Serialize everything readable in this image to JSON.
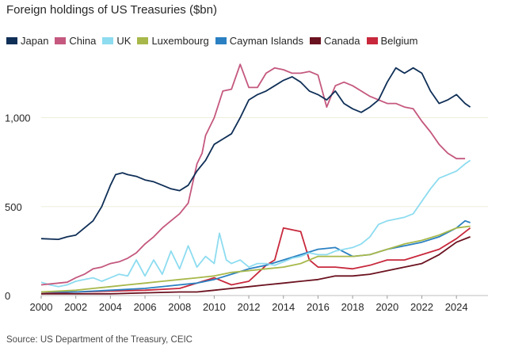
{
  "chart_data": {
    "type": "line",
    "title": "Foreign holdings of US Treasuries ($bn)",
    "source": "Source: US Department of the Treasury, CEIC",
    "xlim": [
      2000,
      2025
    ],
    "ylim": [
      0,
      1350
    ],
    "x_ticks": [
      "2000",
      "2002",
      "2004",
      "2006",
      "2008",
      "2010",
      "2012",
      "2014",
      "2016",
      "2018",
      "2020",
      "2022",
      "2024"
    ],
    "y_ticks": [
      {
        "value": 0,
        "label": "0"
      },
      {
        "value": 500,
        "label": "500"
      },
      {
        "value": 1000,
        "label": "1,000"
      }
    ],
    "grid": "horizontal",
    "legend_position": "top",
    "series": [
      {
        "name": "Japan",
        "color": "#0f2f57",
        "points": [
          [
            2000,
            320
          ],
          [
            2001,
            316
          ],
          [
            2001.5,
            330
          ],
          [
            2002,
            340
          ],
          [
            2002.5,
            380
          ],
          [
            2003,
            420
          ],
          [
            2003.5,
            500
          ],
          [
            2004,
            620
          ],
          [
            2004.3,
            680
          ],
          [
            2004.7,
            690
          ],
          [
            2005,
            680
          ],
          [
            2005.5,
            670
          ],
          [
            2006,
            650
          ],
          [
            2006.5,
            640
          ],
          [
            2007,
            620
          ],
          [
            2007.5,
            600
          ],
          [
            2008,
            590
          ],
          [
            2008.5,
            620
          ],
          [
            2009,
            700
          ],
          [
            2009.5,
            760
          ],
          [
            2010,
            850
          ],
          [
            2010.5,
            880
          ],
          [
            2011,
            910
          ],
          [
            2011.5,
            1000
          ],
          [
            2012,
            1100
          ],
          [
            2012.5,
            1130
          ],
          [
            2013,
            1150
          ],
          [
            2013.5,
            1180
          ],
          [
            2014,
            1210
          ],
          [
            2014.5,
            1230
          ],
          [
            2015,
            1200
          ],
          [
            2015.5,
            1150
          ],
          [
            2016,
            1130
          ],
          [
            2016.5,
            1100
          ],
          [
            2017,
            1150
          ],
          [
            2017.5,
            1080
          ],
          [
            2018,
            1050
          ],
          [
            2018.5,
            1030
          ],
          [
            2019,
            1060
          ],
          [
            2019.5,
            1100
          ],
          [
            2020,
            1200
          ],
          [
            2020.5,
            1280
          ],
          [
            2021,
            1250
          ],
          [
            2021.5,
            1280
          ],
          [
            2022,
            1250
          ],
          [
            2022.5,
            1150
          ],
          [
            2023,
            1080
          ],
          [
            2023.5,
            1100
          ],
          [
            2024,
            1130
          ],
          [
            2024.5,
            1080
          ],
          [
            2024.8,
            1060
          ]
        ]
      },
      {
        "name": "China",
        "color": "#c4587e",
        "points": [
          [
            2000,
            60
          ],
          [
            2000.5,
            65
          ],
          [
            2001,
            70
          ],
          [
            2001.5,
            75
          ],
          [
            2002,
            100
          ],
          [
            2002.5,
            120
          ],
          [
            2003,
            150
          ],
          [
            2003.5,
            160
          ],
          [
            2004,
            180
          ],
          [
            2004.5,
            190
          ],
          [
            2005,
            210
          ],
          [
            2005.5,
            240
          ],
          [
            2006,
            290
          ],
          [
            2006.5,
            330
          ],
          [
            2007,
            380
          ],
          [
            2007.5,
            420
          ],
          [
            2008,
            460
          ],
          [
            2008.5,
            520
          ],
          [
            2009,
            740
          ],
          [
            2009.3,
            800
          ],
          [
            2009.5,
            900
          ],
          [
            2010,
            1000
          ],
          [
            2010.5,
            1150
          ],
          [
            2011,
            1160
          ],
          [
            2011.5,
            1300
          ],
          [
            2012,
            1170
          ],
          [
            2012.5,
            1170
          ],
          [
            2013,
            1250
          ],
          [
            2013.5,
            1280
          ],
          [
            2014,
            1270
          ],
          [
            2014.5,
            1250
          ],
          [
            2015,
            1250
          ],
          [
            2015.5,
            1260
          ],
          [
            2016,
            1240
          ],
          [
            2016.5,
            1060
          ],
          [
            2017,
            1180
          ],
          [
            2017.5,
            1200
          ],
          [
            2018,
            1180
          ],
          [
            2018.5,
            1150
          ],
          [
            2019,
            1120
          ],
          [
            2019.5,
            1100
          ],
          [
            2020,
            1080
          ],
          [
            2020.5,
            1080
          ],
          [
            2021,
            1060
          ],
          [
            2021.5,
            1050
          ],
          [
            2022,
            980
          ],
          [
            2022.5,
            920
          ],
          [
            2023,
            850
          ],
          [
            2023.5,
            800
          ],
          [
            2024,
            770
          ],
          [
            2024.5,
            770
          ]
        ]
      },
      {
        "name": "UK",
        "color": "#8ddcf0",
        "points": [
          [
            2000,
            75
          ],
          [
            2000.5,
            60
          ],
          [
            2001,
            50
          ],
          [
            2001.5,
            60
          ],
          [
            2002,
            80
          ],
          [
            2002.5,
            90
          ],
          [
            2003,
            100
          ],
          [
            2003.5,
            80
          ],
          [
            2004,
            100
          ],
          [
            2004.5,
            120
          ],
          [
            2005,
            110
          ],
          [
            2005.5,
            200
          ],
          [
            2006,
            110
          ],
          [
            2006.5,
            200
          ],
          [
            2007,
            120
          ],
          [
            2007.5,
            250
          ],
          [
            2008,
            150
          ],
          [
            2008.5,
            280
          ],
          [
            2009,
            160
          ],
          [
            2009.5,
            220
          ],
          [
            2010,
            180
          ],
          [
            2010.3,
            350
          ],
          [
            2010.7,
            200
          ],
          [
            2011,
            180
          ],
          [
            2011.5,
            200
          ],
          [
            2012,
            160
          ],
          [
            2012.5,
            180
          ],
          [
            2013,
            180
          ],
          [
            2013.5,
            170
          ],
          [
            2014,
            190
          ],
          [
            2014.5,
            210
          ],
          [
            2015,
            220
          ],
          [
            2015.5,
            240
          ],
          [
            2016,
            230
          ],
          [
            2016.5,
            230
          ],
          [
            2017,
            250
          ],
          [
            2017.5,
            260
          ],
          [
            2018,
            270
          ],
          [
            2018.5,
            290
          ],
          [
            2019,
            330
          ],
          [
            2019.5,
            400
          ],
          [
            2020,
            420
          ],
          [
            2020.5,
            430
          ],
          [
            2021,
            440
          ],
          [
            2021.5,
            460
          ],
          [
            2022,
            530
          ],
          [
            2022.5,
            600
          ],
          [
            2023,
            660
          ],
          [
            2023.5,
            680
          ],
          [
            2024,
            700
          ],
          [
            2024.5,
            740
          ],
          [
            2024.8,
            760
          ]
        ]
      },
      {
        "name": "Luxembourg",
        "color": "#a8b84a",
        "points": [
          [
            2000,
            20
          ],
          [
            2001,
            25
          ],
          [
            2002,
            30
          ],
          [
            2003,
            40
          ],
          [
            2004,
            50
          ],
          [
            2005,
            60
          ],
          [
            2006,
            70
          ],
          [
            2007,
            80
          ],
          [
            2008,
            90
          ],
          [
            2009,
            100
          ],
          [
            2010,
            110
          ],
          [
            2011,
            130
          ],
          [
            2012,
            140
          ],
          [
            2013,
            150
          ],
          [
            2014,
            160
          ],
          [
            2015,
            180
          ],
          [
            2016,
            220
          ],
          [
            2017,
            220
          ],
          [
            2018,
            220
          ],
          [
            2019,
            230
          ],
          [
            2020,
            260
          ],
          [
            2021,
            290
          ],
          [
            2022,
            310
          ],
          [
            2023,
            340
          ],
          [
            2024,
            380
          ],
          [
            2024.8,
            390
          ]
        ]
      },
      {
        "name": "Cayman Islands",
        "color": "#2a80c2",
        "points": [
          [
            2000,
            20
          ],
          [
            2002,
            20
          ],
          [
            2004,
            30
          ],
          [
            2006,
            40
          ],
          [
            2008,
            60
          ],
          [
            2009,
            70
          ],
          [
            2010,
            90
          ],
          [
            2011,
            120
          ],
          [
            2012,
            150
          ],
          [
            2013,
            170
          ],
          [
            2014,
            200
          ],
          [
            2015,
            230
          ],
          [
            2016,
            260
          ],
          [
            2017,
            270
          ],
          [
            2018,
            220
          ],
          [
            2019,
            230
          ],
          [
            2020,
            260
          ],
          [
            2021,
            280
          ],
          [
            2022,
            300
          ],
          [
            2023,
            330
          ],
          [
            2024,
            380
          ],
          [
            2024.5,
            420
          ],
          [
            2024.8,
            410
          ]
        ]
      },
      {
        "name": "Canada",
        "color": "#6b1220",
        "points": [
          [
            2000,
            10
          ],
          [
            2002,
            10
          ],
          [
            2004,
            10
          ],
          [
            2006,
            15
          ],
          [
            2008,
            20
          ],
          [
            2009,
            20
          ],
          [
            2010,
            30
          ],
          [
            2011,
            40
          ],
          [
            2012,
            50
          ],
          [
            2013,
            60
          ],
          [
            2014,
            70
          ],
          [
            2015,
            80
          ],
          [
            2016,
            90
          ],
          [
            2017,
            110
          ],
          [
            2018,
            110
          ],
          [
            2019,
            120
          ],
          [
            2020,
            140
          ],
          [
            2021,
            160
          ],
          [
            2022,
            180
          ],
          [
            2023,
            230
          ],
          [
            2024,
            300
          ],
          [
            2024.8,
            330
          ]
        ]
      },
      {
        "name": "Belgium",
        "color": "#c8283c",
        "points": [
          [
            2000,
            10
          ],
          [
            2002,
            20
          ],
          [
            2004,
            25
          ],
          [
            2006,
            30
          ],
          [
            2008,
            40
          ],
          [
            2010,
            100
          ],
          [
            2011,
            60
          ],
          [
            2012,
            80
          ],
          [
            2013,
            170
          ],
          [
            2013.5,
            200
          ],
          [
            2014,
            380
          ],
          [
            2014.5,
            370
          ],
          [
            2015,
            360
          ],
          [
            2015.5,
            200
          ],
          [
            2016,
            160
          ],
          [
            2017,
            160
          ],
          [
            2018,
            150
          ],
          [
            2019,
            170
          ],
          [
            2020,
            200
          ],
          [
            2021,
            200
          ],
          [
            2022,
            230
          ],
          [
            2023,
            260
          ],
          [
            2024,
            320
          ],
          [
            2024.8,
            380
          ]
        ]
      }
    ]
  }
}
